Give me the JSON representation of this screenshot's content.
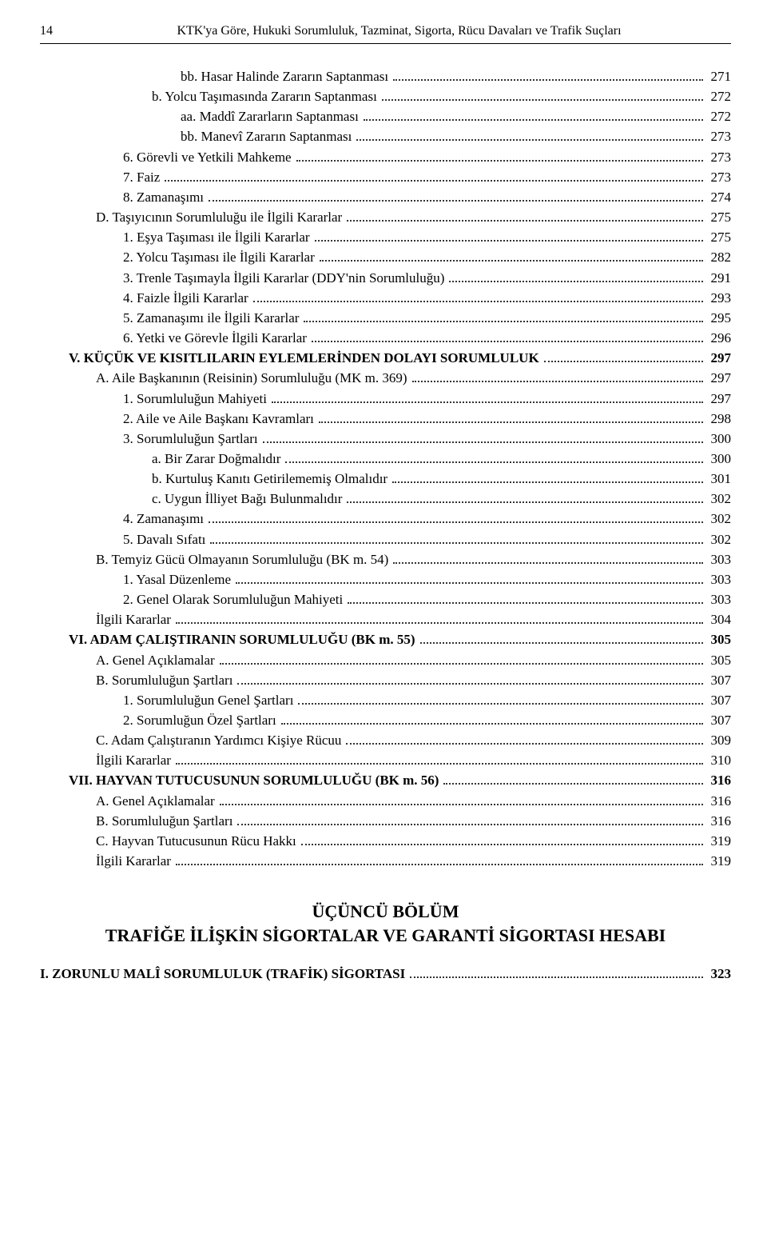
{
  "pageNumber": "14",
  "headerTitle": "KTK'ya Göre, Hukuki Sorumluluk, Tazminat, Sigorta, Rücu Davaları ve Trafik Suçları",
  "entries": [
    {
      "indent": 5,
      "bold": false,
      "label": "bb. Hasar Halinde Zararın Saptanması",
      "page": "271"
    },
    {
      "indent": 4,
      "bold": false,
      "label": "b. Yolcu Taşımasında Zararın Saptanması",
      "page": "272"
    },
    {
      "indent": 5,
      "bold": false,
      "label": "aa. Maddî Zararların Saptanması",
      "page": "272"
    },
    {
      "indent": 5,
      "bold": false,
      "label": "bb. Manevî Zararın Saptanması",
      "page": "273"
    },
    {
      "indent": 3,
      "bold": false,
      "label": "6. Görevli ve Yetkili Mahkeme",
      "page": "273"
    },
    {
      "indent": 3,
      "bold": false,
      "label": "7. Faiz",
      "page": "273"
    },
    {
      "indent": 3,
      "bold": false,
      "label": "8. Zamanaşımı",
      "page": "274"
    },
    {
      "indent": 2,
      "bold": false,
      "label": "D. Taşıyıcının Sorumluluğu ile İlgili Kararlar",
      "page": "275"
    },
    {
      "indent": 3,
      "bold": false,
      "label": "1. Eşya Taşıması ile İlgili Kararlar",
      "page": "275"
    },
    {
      "indent": 3,
      "bold": false,
      "label": "2. Yolcu Taşıması ile İlgili Kararlar",
      "page": "282"
    },
    {
      "indent": 3,
      "bold": false,
      "label": "3. Trenle Taşımayla İlgili Kararlar (DDY'nin Sorumluluğu)",
      "page": "291"
    },
    {
      "indent": 3,
      "bold": false,
      "label": "4. Faizle İlgili Kararlar",
      "page": "293"
    },
    {
      "indent": 3,
      "bold": false,
      "label": "5. Zamanaşımı ile İlgili Kararlar",
      "page": "295"
    },
    {
      "indent": 3,
      "bold": false,
      "label": "6. Yetki ve Görevle İlgili Kararlar",
      "page": "296"
    },
    {
      "indent": 1,
      "bold": true,
      "label": "V. KÜÇÜK VE KISITLILARIN EYLEMLERİNDEN DOLAYI SORUMLULUK",
      "page": "297"
    },
    {
      "indent": 2,
      "bold": false,
      "label": "A. Aile Başkanının (Reisinin) Sorumluluğu (MK m. 369)",
      "page": "297"
    },
    {
      "indent": 3,
      "bold": false,
      "label": "1. Sorumluluğun Mahiyeti",
      "page": "297"
    },
    {
      "indent": 3,
      "bold": false,
      "label": "2. Aile ve Aile Başkanı Kavramları",
      "page": "298"
    },
    {
      "indent": 3,
      "bold": false,
      "label": "3. Sorumluluğun Şartları",
      "page": "300"
    },
    {
      "indent": 4,
      "bold": false,
      "label": "a. Bir Zarar Doğmalıdır",
      "page": "300"
    },
    {
      "indent": 4,
      "bold": false,
      "label": "b. Kurtuluş Kanıtı Getirilememiş Olmalıdır",
      "page": "301"
    },
    {
      "indent": 4,
      "bold": false,
      "label": "c. Uygun İlliyet Bağı Bulunmalıdır",
      "page": "302"
    },
    {
      "indent": 3,
      "bold": false,
      "label": "4. Zamanaşımı",
      "page": "302"
    },
    {
      "indent": 3,
      "bold": false,
      "label": "5. Davalı Sıfatı",
      "page": "302"
    },
    {
      "indent": 2,
      "bold": false,
      "label": "B. Temyiz Gücü Olmayanın Sorumluluğu (BK m. 54)",
      "page": "303"
    },
    {
      "indent": 3,
      "bold": false,
      "label": "1. Yasal Düzenleme",
      "page": "303"
    },
    {
      "indent": 3,
      "bold": false,
      "label": "2. Genel Olarak Sorumluluğun Mahiyeti",
      "page": "303"
    },
    {
      "indent": 2,
      "bold": false,
      "label": "İlgili Kararlar",
      "page": "304"
    },
    {
      "indent": 1,
      "bold": true,
      "label": "VI. ADAM ÇALIŞTIRANIN SORUMLULUĞU (BK m. 55)",
      "page": "305"
    },
    {
      "indent": 2,
      "bold": false,
      "label": "A. Genel Açıklamalar",
      "page": "305"
    },
    {
      "indent": 2,
      "bold": false,
      "label": "B. Sorumluluğun Şartları",
      "page": "307"
    },
    {
      "indent": 3,
      "bold": false,
      "label": "1. Sorumluluğun Genel Şartları",
      "page": "307"
    },
    {
      "indent": 3,
      "bold": false,
      "label": "2. Sorumluğun Özel Şartları",
      "page": "307"
    },
    {
      "indent": 2,
      "bold": false,
      "label": "C. Adam Çalıştıranın Yardımcı Kişiye Rücuu",
      "page": "309"
    },
    {
      "indent": 2,
      "bold": false,
      "label": "İlgili Kararlar",
      "page": "310"
    },
    {
      "indent": 1,
      "bold": true,
      "label": "VII. HAYVAN TUTUCUSUNUN SORUMLULUĞU (BK m. 56)",
      "page": "316"
    },
    {
      "indent": 2,
      "bold": false,
      "label": "A. Genel Açıklamalar",
      "page": "316"
    },
    {
      "indent": 2,
      "bold": false,
      "label": "B. Sorumluluğun Şartları",
      "page": "316"
    },
    {
      "indent": 2,
      "bold": false,
      "label": "C. Hayvan Tutucusunun Rücu Hakkı",
      "page": "319"
    },
    {
      "indent": 2,
      "bold": false,
      "label": "İlgili Kararlar",
      "page": "319"
    }
  ],
  "chapterLabel": "ÜÇÜNCÜ BÖLÜM",
  "chapterTitle": "TRAFİĞE İLİŞKİN SİGORTALAR VE GARANTİ SİGORTASI HESABI",
  "lastEntry": {
    "indent": 0,
    "bold": true,
    "label": "I. ZORUNLU MALÎ SORUMLULUK (TRAFİK) SİGORTASI",
    "page": "323"
  }
}
